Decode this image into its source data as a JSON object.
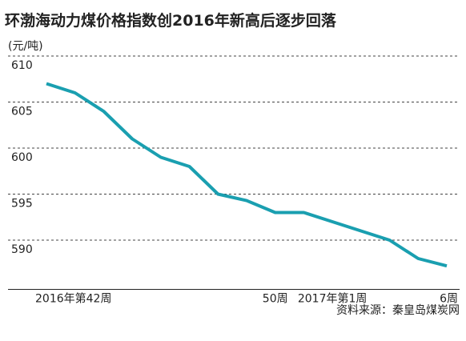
{
  "chart_data": {
    "type": "line",
    "title": "环渤海动力煤价格指数创2016年新高后逐步回落",
    "y_label": "(元/吨)",
    "source": "资料来源：秦皇岛煤炭网",
    "categories": [
      "2016年第42周",
      null,
      null,
      null,
      null,
      null,
      null,
      null,
      "50周",
      null,
      "2017年第1周",
      null,
      null,
      null,
      "6周"
    ],
    "series": [
      {
        "name": "环渤海动力煤价格指数",
        "color": "#1a9fb0",
        "values": [
          607,
          606,
          604,
          601,
          599,
          598,
          595,
          594.3,
          593,
          593,
          592,
          591,
          590,
          588,
          587.2
        ]
      }
    ],
    "ylim": [
      585,
      610
    ],
    "yticks": [
      590,
      595,
      600,
      605,
      610
    ],
    "grid": true
  }
}
